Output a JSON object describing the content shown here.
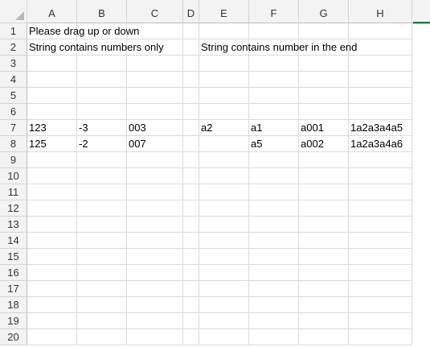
{
  "columns": [
    "A",
    "B",
    "C",
    "D",
    "E",
    "F",
    "G",
    "H"
  ],
  "rows": [
    "1",
    "2",
    "3",
    "4",
    "5",
    "6",
    "7",
    "8",
    "9",
    "10",
    "11",
    "12",
    "13",
    "14",
    "15",
    "16",
    "17",
    "18",
    "19",
    "20"
  ],
  "cells": {
    "A1": "Please drag up or down",
    "A2": "String contains numbers only",
    "E2": "String contains number in the end",
    "A7": "123",
    "B7": "-3",
    "C7": "003",
    "E7": "a2",
    "F7": "a1",
    "G7": "a001",
    "H7": "1a2a3a4a5",
    "A8": "125",
    "B8": "-2",
    "C8": "007",
    "F8": "a5",
    "G8": "a002",
    "H8": "1a2a3a4a6"
  },
  "accent_color": "#217346"
}
